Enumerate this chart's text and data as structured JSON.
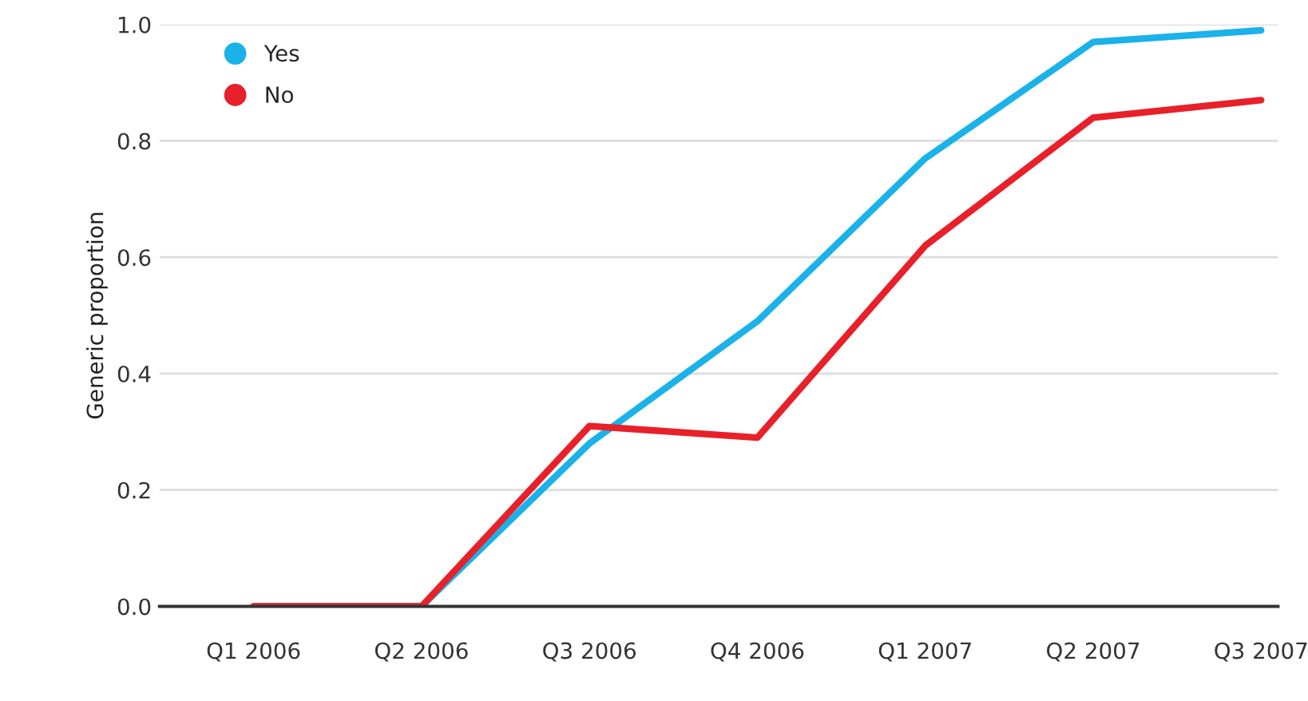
{
  "chart_data": {
    "type": "line",
    "ylabel": "Generic proportion",
    "categories": [
      "Q1 2006",
      "Q2 2006",
      "Q3 2006",
      "Q4 2006",
      "Q1 2007",
      "Q2 2007",
      "Q3 2007"
    ],
    "series": [
      {
        "name": "Yes",
        "color": "#1ab2e8",
        "values": [
          0.0,
          0.0,
          0.28,
          0.49,
          0.77,
          0.97,
          0.99
        ]
      },
      {
        "name": "No",
        "color": "#e8202a",
        "values": [
          0.0,
          0.0,
          0.31,
          0.29,
          0.62,
          0.84,
          0.87
        ]
      }
    ],
    "ylim": [
      0,
      1.0
    ],
    "yticks": [
      {
        "value": 0,
        "label": "0.0"
      },
      0.2,
      0.4,
      0.6,
      0.8,
      {
        "value": 1.0,
        "label": "1.0"
      }
    ],
    "grid": "y",
    "legend": "top left",
    "line_style": "solid"
  }
}
